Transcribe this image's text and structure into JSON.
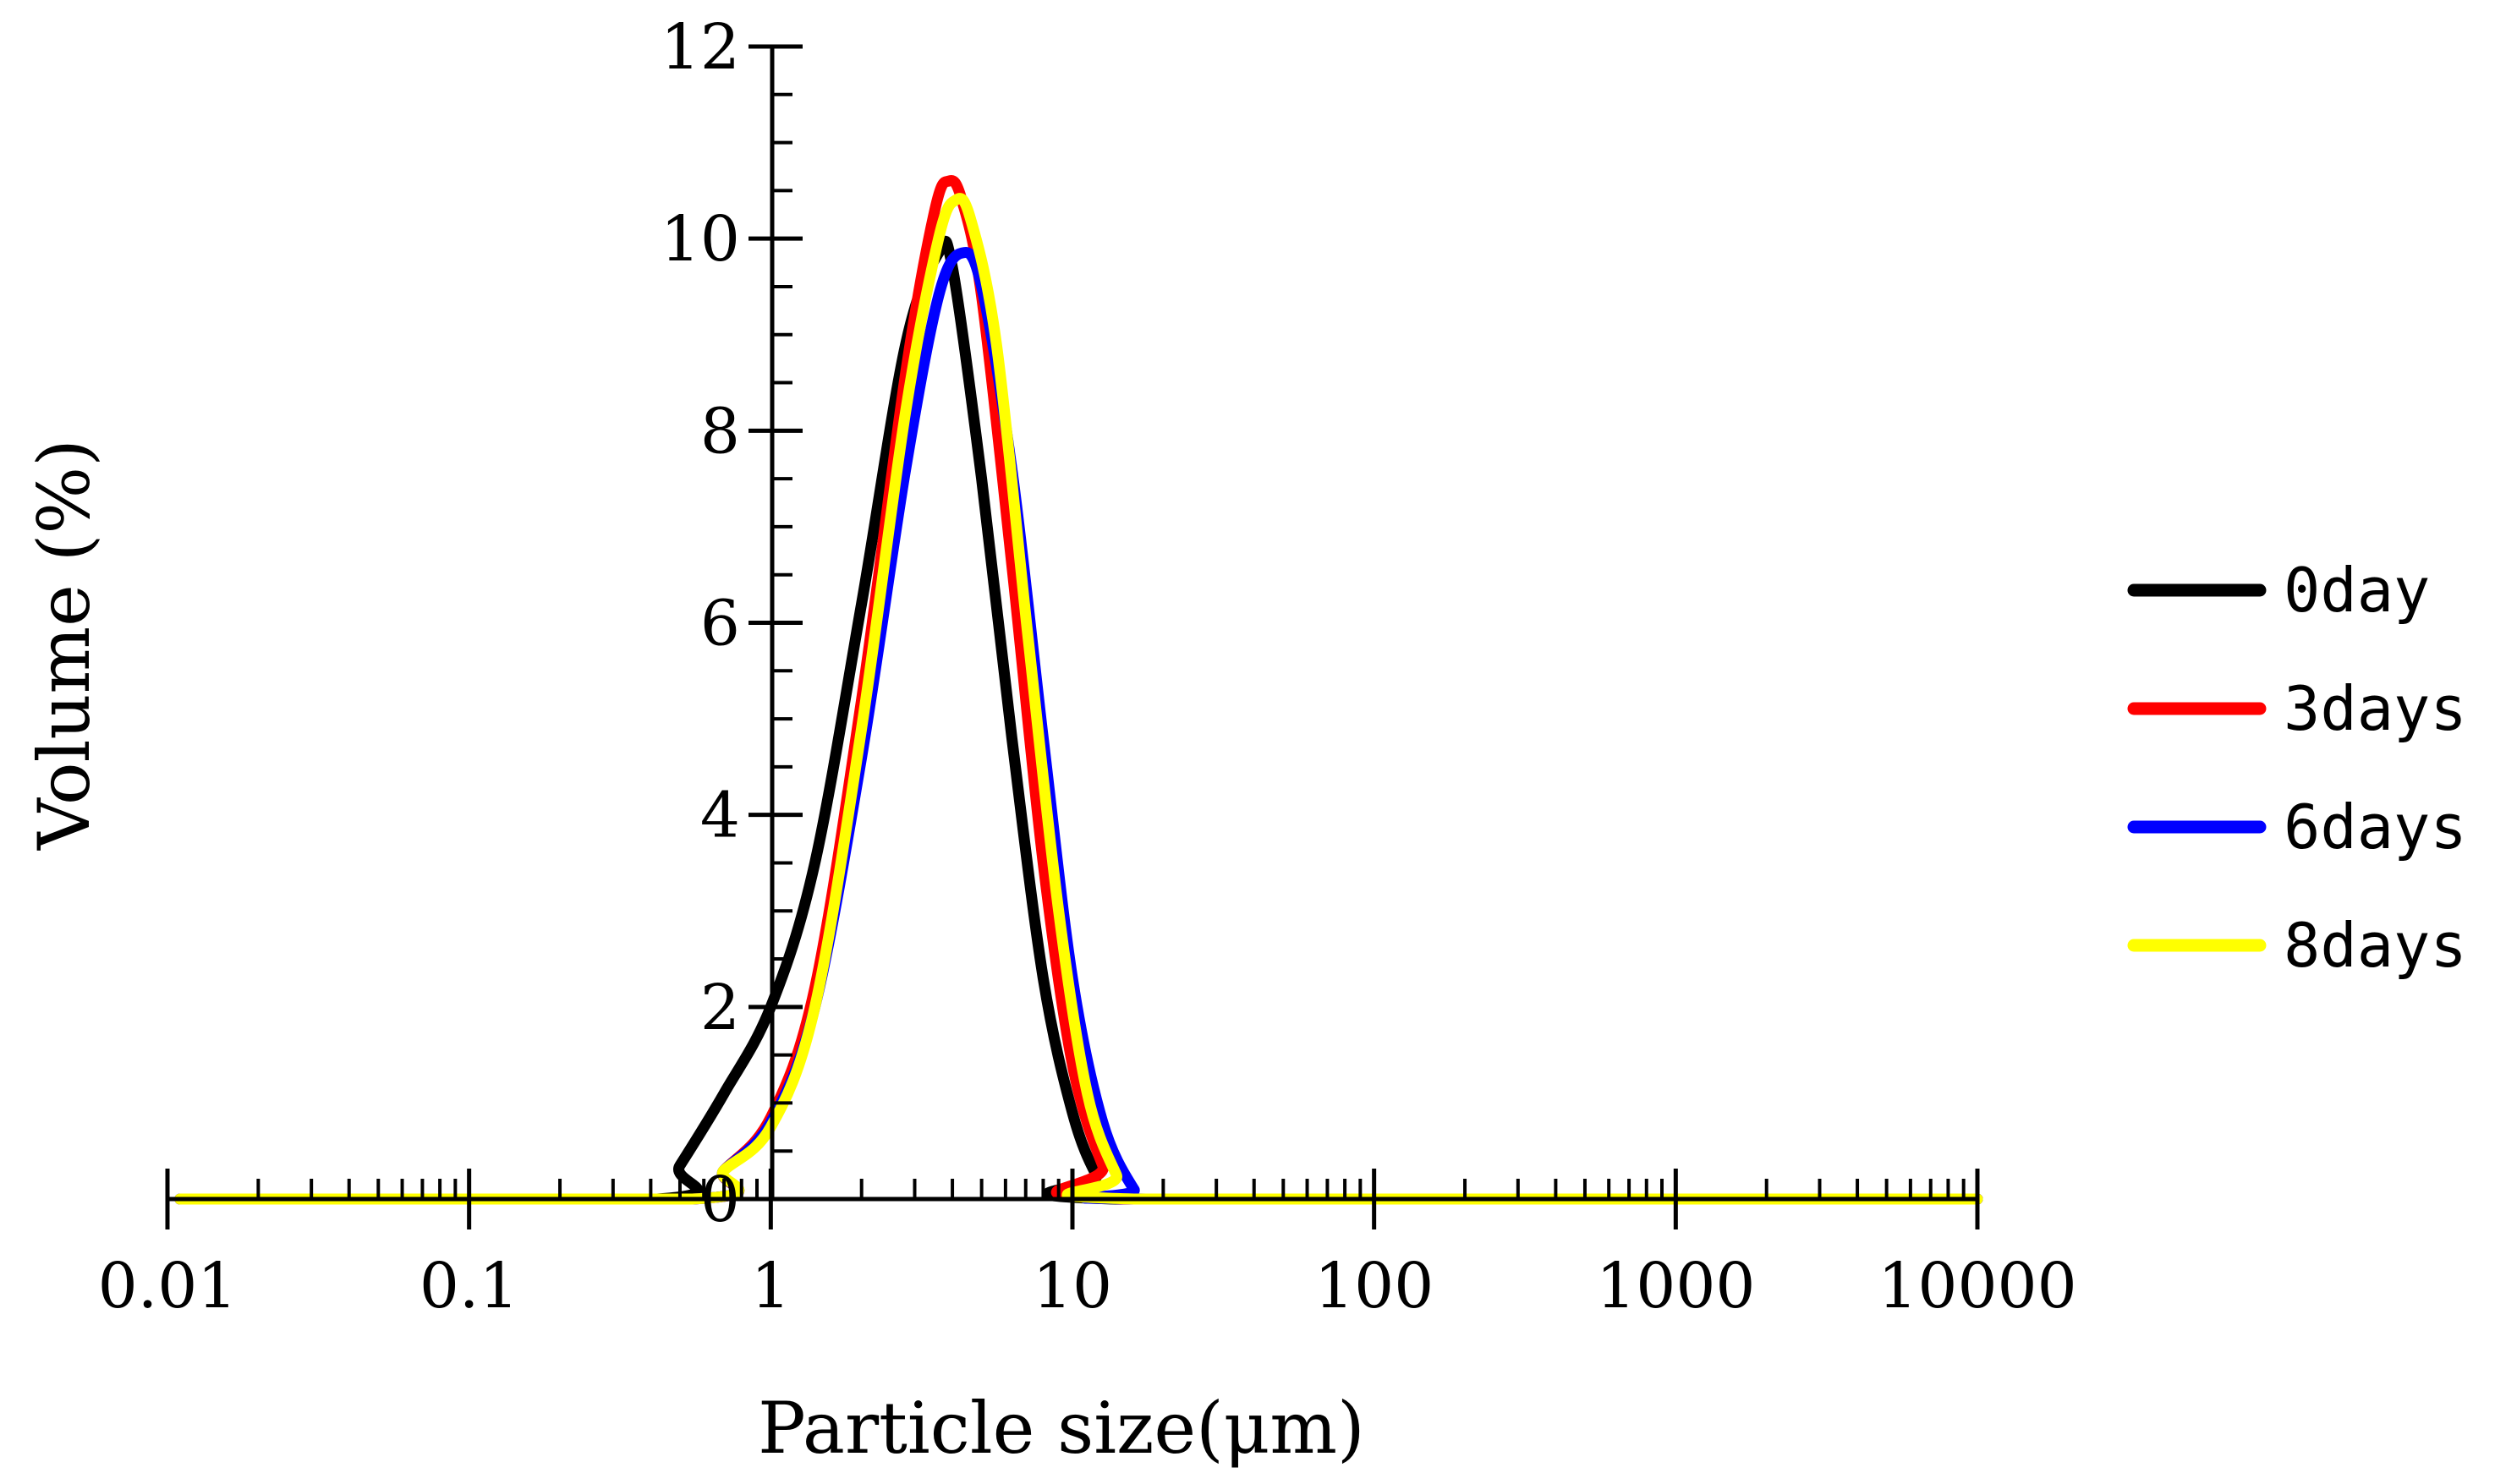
{
  "chart_data": {
    "type": "line",
    "title": "",
    "xlabel": "Particle size(μm)",
    "ylabel": "Volume (%)",
    "xscale": "log",
    "xlim": [
      0.01,
      10000
    ],
    "ylim": [
      0,
      12
    ],
    "x_ticks": [
      {
        "value": 0.01,
        "label": "0.01"
      },
      {
        "value": 0.1,
        "label": "0.1"
      },
      {
        "value": 1,
        "label": "1"
      },
      {
        "value": 10,
        "label": "10"
      },
      {
        "value": 100,
        "label": "100"
      },
      {
        "value": 1000,
        "label": "1000"
      },
      {
        "value": 10000,
        "label": "10000"
      }
    ],
    "y_ticks": [
      {
        "value": 0,
        "label": "0"
      },
      {
        "value": 2,
        "label": "2"
      },
      {
        "value": 4,
        "label": "4"
      },
      {
        "value": 6,
        "label": "6"
      },
      {
        "value": 8,
        "label": "8"
      },
      {
        "value": 10,
        "label": "10"
      },
      {
        "value": 12,
        "label": "12"
      }
    ],
    "grid": false,
    "legend_position": "right",
    "series": [
      {
        "name": "0day",
        "color": "#000000",
        "points": [
          [
            0.011,
            0
          ],
          [
            0.42,
            0
          ],
          [
            0.5,
            0.35
          ],
          [
            0.7,
            1.1
          ],
          [
            1.0,
            2.0
          ],
          [
            1.4,
            3.5
          ],
          [
            2.0,
            6.2
          ],
          [
            2.8,
            8.9
          ],
          [
            3.6,
            9.85
          ],
          [
            4.0,
            9.7
          ],
          [
            5.0,
            7.5
          ],
          [
            6.3,
            4.8
          ],
          [
            8.0,
            2.3
          ],
          [
            10.0,
            0.9
          ],
          [
            12.0,
            0.25
          ],
          [
            14.0,
            0
          ],
          [
            10000,
            0
          ]
        ]
      },
      {
        "name": "3days",
        "color": "#ff0000",
        "points": [
          [
            0.011,
            0
          ],
          [
            0.55,
            0
          ],
          [
            0.7,
            0.3
          ],
          [
            1.0,
            0.85
          ],
          [
            1.4,
            2.2
          ],
          [
            2.0,
            5.2
          ],
          [
            2.8,
            8.6
          ],
          [
            3.5,
            10.3
          ],
          [
            3.9,
            10.6
          ],
          [
            4.3,
            10.4
          ],
          [
            5.0,
            9.4
          ],
          [
            6.3,
            6.6
          ],
          [
            8.0,
            3.5
          ],
          [
            10.0,
            1.4
          ],
          [
            12.6,
            0.35
          ],
          [
            15.0,
            0
          ],
          [
            10000,
            0
          ]
        ]
      },
      {
        "name": "6days",
        "color": "#0000ff",
        "points": [
          [
            0.011,
            0
          ],
          [
            0.55,
            0
          ],
          [
            0.7,
            0.3
          ],
          [
            1.0,
            0.8
          ],
          [
            1.4,
            2.0
          ],
          [
            2.0,
            4.6
          ],
          [
            2.8,
            7.6
          ],
          [
            3.6,
            9.4
          ],
          [
            4.3,
            9.85
          ],
          [
            5.0,
            9.5
          ],
          [
            6.3,
            7.6
          ],
          [
            8.0,
            4.8
          ],
          [
            10.0,
            2.3
          ],
          [
            12.6,
            0.8
          ],
          [
            16.0,
            0.1
          ],
          [
            18.0,
            0
          ],
          [
            10000,
            0
          ]
        ]
      },
      {
        "name": "8days",
        "color": "#ffff00",
        "points": [
          [
            0.011,
            0
          ],
          [
            0.55,
            0
          ],
          [
            0.7,
            0.3
          ],
          [
            1.0,
            0.75
          ],
          [
            1.4,
            2.0
          ],
          [
            2.0,
            4.9
          ],
          [
            2.8,
            8.2
          ],
          [
            3.6,
            10.0
          ],
          [
            4.1,
            10.4
          ],
          [
            4.6,
            10.2
          ],
          [
            5.6,
            8.9
          ],
          [
            7.1,
            5.9
          ],
          [
            9.0,
            3.0
          ],
          [
            11.2,
            1.1
          ],
          [
            14.0,
            0.25
          ],
          [
            16.0,
            0
          ],
          [
            10000,
            0
          ]
        ]
      }
    ]
  }
}
